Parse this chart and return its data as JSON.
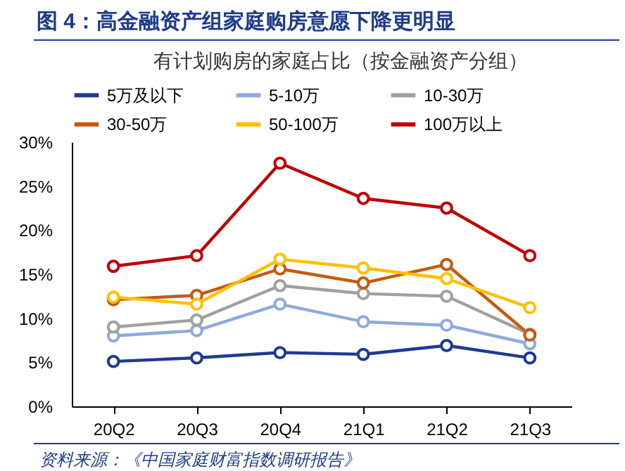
{
  "chart_data": {
    "type": "line",
    "title": "图 4：高金融资产组家庭购房意愿下降更明显",
    "subtitle": "有计划购房的家庭占比（按金融资产分组）",
    "categories": [
      "20Q2",
      "20Q3",
      "20Q4",
      "21Q1",
      "21Q2",
      "21Q3"
    ],
    "series": [
      {
        "name": "5万及以下",
        "color": "#1f3a93",
        "values": [
          5.1,
          5.5,
          6.1,
          5.9,
          6.9,
          5.5
        ]
      },
      {
        "name": "5-10万",
        "color": "#8eaadb",
        "values": [
          8.0,
          8.6,
          11.6,
          9.6,
          9.2,
          7.1
        ]
      },
      {
        "name": "10-30万",
        "color": "#a0a0a0",
        "values": [
          9.0,
          9.8,
          13.7,
          12.8,
          12.5,
          8.2
        ]
      },
      {
        "name": "30-50万",
        "color": "#c55a11",
        "values": [
          12.1,
          12.6,
          15.6,
          14.0,
          16.1,
          8.1
        ]
      },
      {
        "name": "50-100万",
        "color": "#ffc000",
        "values": [
          12.4,
          11.6,
          16.7,
          15.7,
          14.5,
          11.2
        ]
      },
      {
        "name": "100万以上",
        "color": "#c00000",
        "values": [
          15.9,
          17.1,
          27.6,
          23.6,
          22.5,
          17.1
        ]
      }
    ],
    "ylim": [
      0,
      30
    ],
    "yticks": [
      {
        "value": 0,
        "label": "0%"
      },
      {
        "value": 5,
        "label": "5%"
      },
      {
        "value": 10,
        "label": "10%"
      },
      {
        "value": 15,
        "label": "15%"
      },
      {
        "value": 20,
        "label": "20%"
      },
      {
        "value": 25,
        "label": "25%"
      },
      {
        "value": 30,
        "label": "30%"
      }
    ],
    "grid": false,
    "legend": "top",
    "marker": "circle",
    "line_style": "solid",
    "annotations": [
      "资料来源：《中国家庭财富指数调研报告》"
    ]
  }
}
